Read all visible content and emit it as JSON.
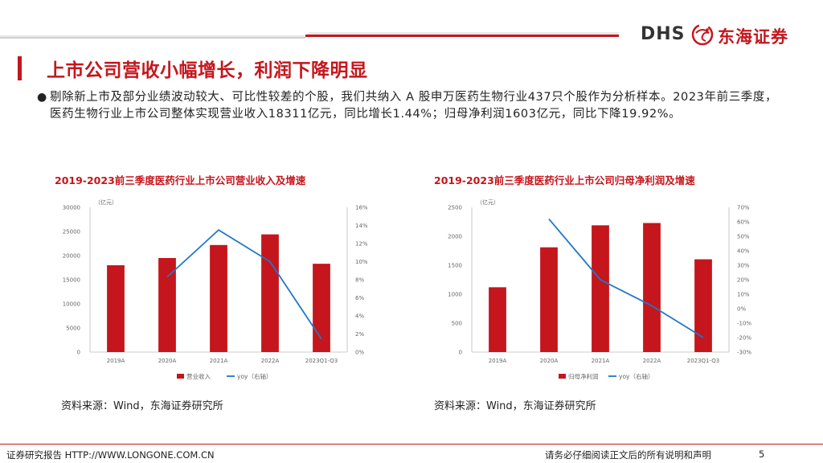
{
  "header": {
    "brand_latin": "DHS",
    "brand_cn": "东海证券",
    "colors": {
      "accent": "#c4161c",
      "line": "#1f77c9"
    }
  },
  "title": "上市公司营收小幅增长，利润下降明显",
  "bullet_symbol": "●",
  "body": "剔除新上市及部分业绩波动较大、可比性较差的个股，我们共纳入 A 股申万医药生物行业437只个股作为分析样本。2023年前三季度，医药生物行业上市公司整体实现营业收入18311亿元，同比增长1.44%；归母净利润1603亿元，同比下降19.92%。",
  "chart_data": [
    {
      "type": "bar",
      "title": "2019-2023前三季度医药行业上市公司营业收入及增速",
      "unit_label": "（亿元）",
      "categories": [
        "2019A",
        "2020A",
        "2021A",
        "2022A",
        "2023Q1-Q3"
      ],
      "series": [
        {
          "name": "营业收入",
          "kind": "bar",
          "axis": "left",
          "values": [
            18000,
            19500,
            22200,
            24400,
            18311
          ]
        },
        {
          "name": "yoy（右轴）",
          "kind": "line",
          "axis": "right",
          "values": [
            null,
            8.3,
            13.5,
            10.0,
            1.44
          ]
        }
      ],
      "left_axis": {
        "min": 0,
        "max": 30000,
        "step": 5000,
        "ticks": [
          "0",
          "5000",
          "10000",
          "15000",
          "20000",
          "25000",
          "30000"
        ]
      },
      "right_axis": {
        "min": 0,
        "max": 16,
        "step": 2,
        "ticks": [
          "0%",
          "2%",
          "4%",
          "6%",
          "8%",
          "10%",
          "12%",
          "14%",
          "16%"
        ]
      },
      "source": "资料来源：Wind，东海证券研究所"
    },
    {
      "type": "bar",
      "title": "2019-2023前三季度医药行业上市公司归母净利润及增速",
      "unit_label": "（亿元）",
      "categories": [
        "2019A",
        "2020A",
        "2021A",
        "2022A",
        "2023Q1-Q3"
      ],
      "series": [
        {
          "name": "归母净利润",
          "kind": "bar",
          "axis": "left",
          "values": [
            1120,
            1810,
            2190,
            2230,
            1603
          ]
        },
        {
          "name": "yoy（右轴）",
          "kind": "line",
          "axis": "right",
          "values": [
            null,
            62,
            20,
            2,
            -19.92
          ]
        }
      ],
      "left_axis": {
        "min": 0,
        "max": 2500,
        "step": 500,
        "ticks": [
          "0",
          "500",
          "1000",
          "1500",
          "2000",
          "2500"
        ]
      },
      "right_axis": {
        "min": -30,
        "max": 70,
        "step": 10,
        "ticks": [
          "-30%",
          "-20%",
          "-10%",
          "0%",
          "10%",
          "20%",
          "30%",
          "40%",
          "50%",
          "60%",
          "70%"
        ]
      },
      "source": "资料来源：Wind，东海证券研究所"
    }
  ],
  "footer": {
    "left": "证券研究报告 HTTP://WWW.LONGONE.COM.CN",
    "right": "请务必仔细阅读正文后的所有说明和声明",
    "page": "5"
  }
}
